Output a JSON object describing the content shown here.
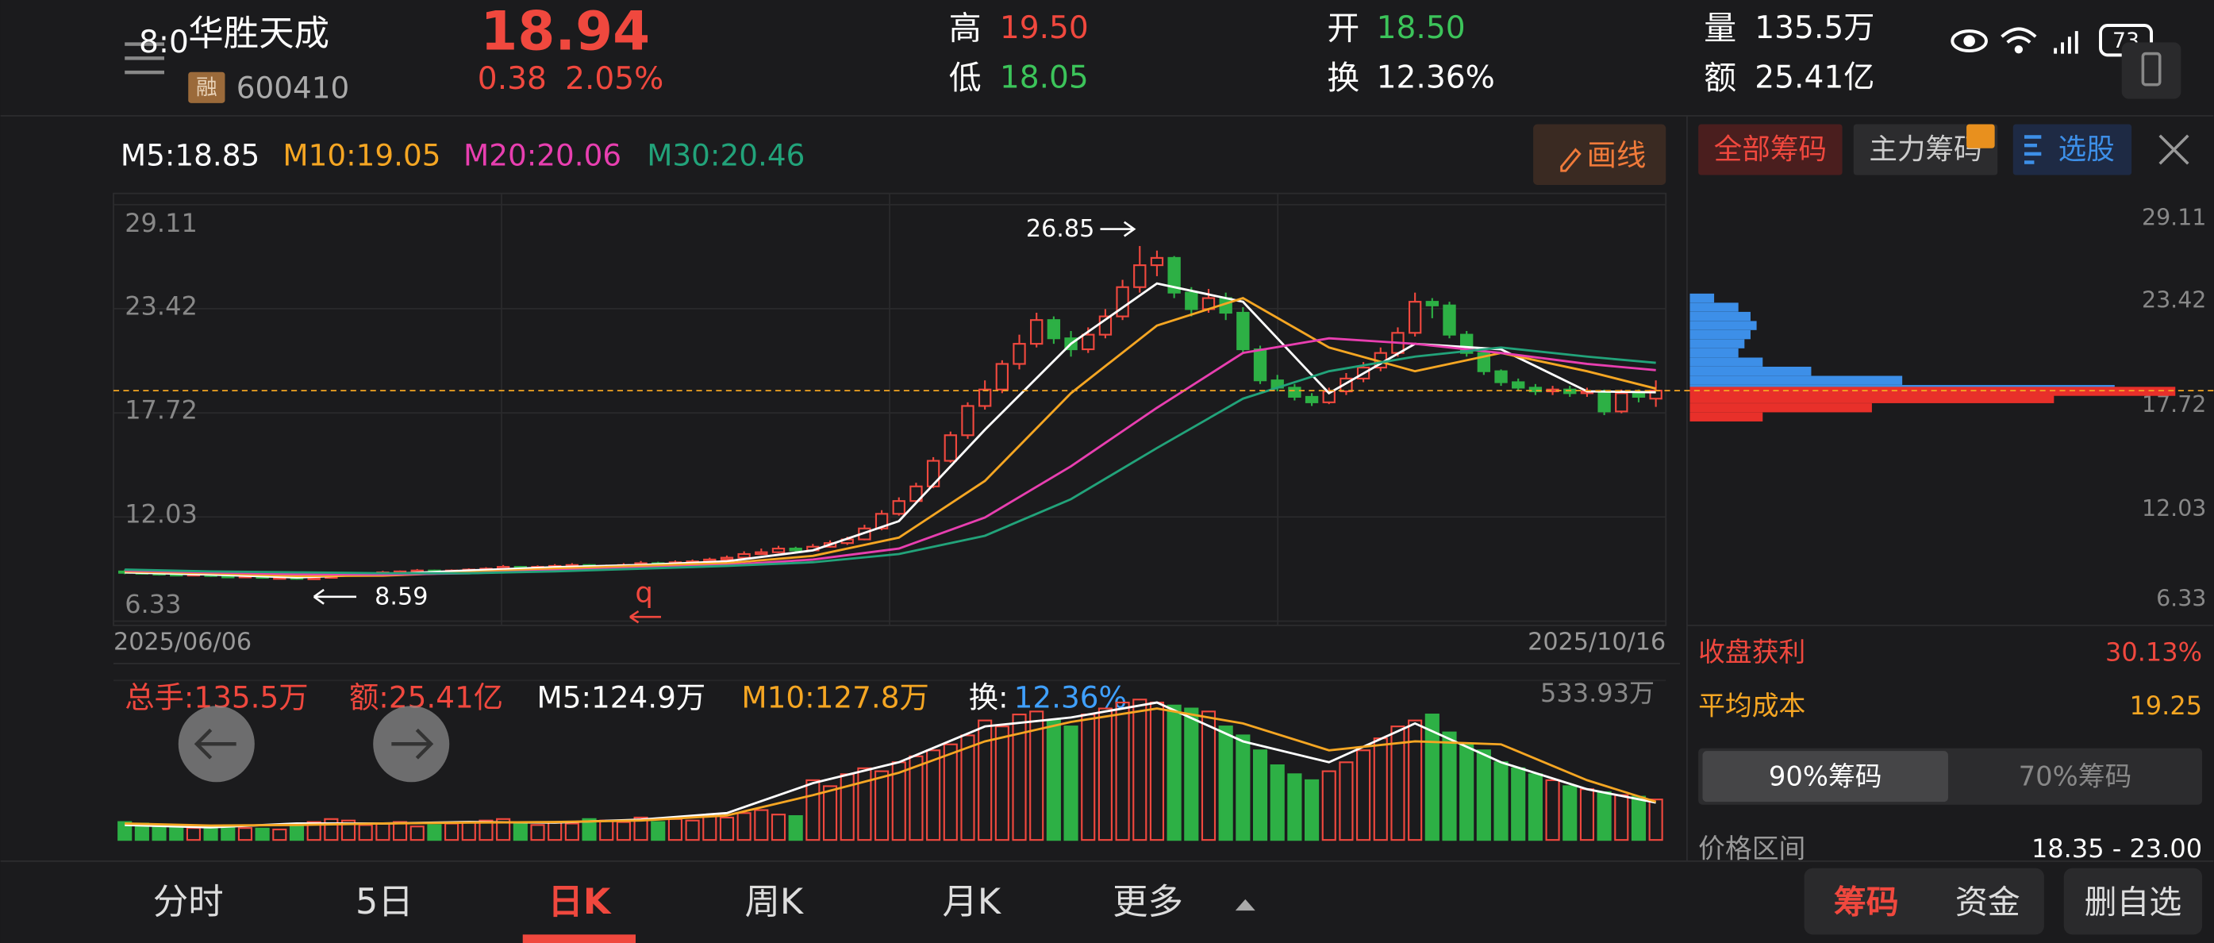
{
  "status": {
    "time": "8:0",
    "battery": "73"
  },
  "header": {
    "name": "华胜天成",
    "tag": "融",
    "code": "600410",
    "price": "18.94",
    "change": "0.38",
    "change_pct": "2.05%",
    "high_label": "高",
    "high": "19.50",
    "low_label": "低",
    "low": "18.05",
    "open_label": "开",
    "open": "18.50",
    "turnover_label": "换",
    "turnover": "12.36%",
    "volume_label": "量",
    "volume": "135.5万",
    "amount_label": "额",
    "amount": "25.41亿"
  },
  "toolbar": {
    "draw": "画线"
  },
  "kline": {
    "type": "candlestick",
    "up_color": "#f0483e",
    "down_color": "#2db045",
    "ylim": [
      6.33,
      29.11
    ],
    "yticks": [
      29.11,
      23.42,
      17.72,
      12.03,
      6.33
    ],
    "dates": [
      "2025/06/06",
      "2025/10/16"
    ],
    "ma_legend": [
      "M5:18.85",
      "M10:19.05",
      "M20:20.06",
      "M30:20.46"
    ],
    "ma": [
      {
        "color": "#ffffff",
        "x": [
          0,
          5,
          10,
          15,
          20,
          25,
          30,
          35,
          40,
          45,
          50,
          55,
          60,
          65,
          70,
          75,
          80,
          85,
          89
        ],
        "values": [
          9.0,
          8.88,
          8.72,
          8.9,
          9.1,
          9.28,
          9.4,
          9.6,
          10.2,
          11.8,
          16.8,
          21.5,
          24.8,
          23.8,
          18.8,
          21.5,
          21.2,
          18.9,
          18.85
        ]
      },
      {
        "color": "#f5a623",
        "x": [
          0,
          5,
          10,
          15,
          20,
          25,
          30,
          35,
          40,
          45,
          50,
          55,
          60,
          65,
          70,
          75,
          80,
          85,
          89
        ],
        "values": [
          9.05,
          8.95,
          8.8,
          8.82,
          9.0,
          9.2,
          9.35,
          9.5,
          9.9,
          10.9,
          14.0,
          18.8,
          22.5,
          24.0,
          21.3,
          20.0,
          21.0,
          20.0,
          19.05
        ]
      },
      {
        "color": "#e83fb0",
        "x": [
          0,
          5,
          10,
          15,
          20,
          25,
          30,
          35,
          40,
          45,
          50,
          55,
          60,
          65,
          70,
          75,
          80,
          85,
          89
        ],
        "values": [
          9.1,
          9.0,
          8.9,
          8.88,
          8.95,
          9.1,
          9.25,
          9.4,
          9.7,
          10.3,
          12.0,
          14.8,
          18.0,
          21.0,
          21.8,
          21.5,
          21.0,
          20.4,
          20.06
        ]
      },
      {
        "color": "#22a37a",
        "x": [
          0,
          5,
          10,
          15,
          20,
          25,
          30,
          35,
          40,
          45,
          50,
          55,
          60,
          65,
          70,
          75,
          80,
          85,
          89
        ],
        "values": [
          9.15,
          9.05,
          9.0,
          8.95,
          8.95,
          9.05,
          9.2,
          9.35,
          9.55,
          10.0,
          11.0,
          13.0,
          15.8,
          18.5,
          20.0,
          20.8,
          21.3,
          20.8,
          20.46
        ]
      }
    ],
    "candles": [
      [
        9.05,
        9.15,
        8.9,
        9.0
      ],
      [
        9.0,
        9.1,
        8.88,
        8.95
      ],
      [
        8.95,
        9.0,
        8.82,
        8.9
      ],
      [
        8.9,
        8.98,
        8.8,
        8.85
      ],
      [
        8.85,
        8.98,
        8.8,
        8.9
      ],
      [
        8.9,
        8.95,
        8.75,
        8.8
      ],
      [
        8.8,
        8.85,
        8.7,
        8.75
      ],
      [
        8.75,
        8.88,
        8.7,
        8.8
      ],
      [
        8.8,
        8.85,
        8.65,
        8.7
      ],
      [
        8.7,
        8.8,
        8.65,
        8.72
      ],
      [
        8.72,
        8.76,
        8.6,
        8.65
      ],
      [
        8.65,
        8.78,
        8.59,
        8.7
      ],
      [
        8.7,
        8.92,
        8.68,
        8.85
      ],
      [
        8.85,
        8.98,
        8.8,
        8.9
      ],
      [
        8.9,
        9.02,
        8.85,
        8.95
      ],
      [
        8.95,
        9.08,
        8.9,
        9.0
      ],
      [
        9.0,
        9.1,
        8.95,
        9.05
      ],
      [
        9.05,
        9.18,
        9.0,
        9.1
      ],
      [
        9.1,
        9.15,
        9.0,
        9.05
      ],
      [
        9.05,
        9.16,
        9.0,
        9.1
      ],
      [
        9.1,
        9.22,
        9.05,
        9.15
      ],
      [
        9.15,
        9.28,
        9.1,
        9.2
      ],
      [
        9.2,
        9.4,
        9.15,
        9.3
      ],
      [
        9.3,
        9.35,
        9.2,
        9.25
      ],
      [
        9.25,
        9.38,
        9.2,
        9.3
      ],
      [
        9.3,
        9.45,
        9.25,
        9.35
      ],
      [
        9.35,
        9.5,
        9.3,
        9.4
      ],
      [
        9.4,
        9.45,
        9.25,
        9.3
      ],
      [
        9.3,
        9.42,
        9.25,
        9.35
      ],
      [
        9.35,
        9.5,
        9.3,
        9.4
      ],
      [
        9.4,
        9.62,
        9.35,
        9.5
      ],
      [
        9.5,
        9.58,
        9.4,
        9.45
      ],
      [
        9.45,
        9.65,
        9.4,
        9.55
      ],
      [
        9.55,
        9.7,
        9.5,
        9.6
      ],
      [
        9.6,
        9.8,
        9.55,
        9.7
      ],
      [
        9.7,
        9.92,
        9.65,
        9.8
      ],
      [
        9.8,
        10.15,
        9.75,
        10.0
      ],
      [
        10.0,
        10.3,
        9.95,
        10.1
      ],
      [
        10.1,
        10.45,
        10.05,
        10.3
      ],
      [
        10.3,
        10.4,
        10.1,
        10.2
      ],
      [
        10.2,
        10.55,
        10.15,
        10.4
      ],
      [
        10.4,
        10.75,
        10.35,
        10.6
      ],
      [
        10.6,
        10.95,
        10.5,
        10.8
      ],
      [
        10.8,
        11.6,
        10.75,
        11.4
      ],
      [
        11.4,
        12.4,
        11.3,
        12.2
      ],
      [
        12.2,
        13.1,
        12.1,
        12.9
      ],
      [
        12.9,
        13.9,
        12.8,
        13.7
      ],
      [
        13.7,
        15.3,
        13.6,
        15.1
      ],
      [
        15.1,
        16.7,
        15.0,
        16.5
      ],
      [
        16.5,
        18.3,
        16.3,
        18.1
      ],
      [
        18.1,
        19.5,
        17.9,
        19.0
      ],
      [
        19.0,
        20.6,
        18.8,
        20.4
      ],
      [
        20.4,
        22.0,
        20.1,
        21.5
      ],
      [
        21.5,
        23.2,
        21.3,
        22.8
      ],
      [
        22.8,
        23.0,
        21.5,
        21.8
      ],
      [
        21.8,
        22.2,
        20.8,
        21.2
      ],
      [
        21.2,
        22.4,
        21.0,
        22.0
      ],
      [
        22.0,
        23.4,
        21.8,
        23.0
      ],
      [
        23.0,
        25.0,
        22.8,
        24.6
      ],
      [
        24.6,
        26.85,
        24.3,
        25.8
      ],
      [
        25.8,
        26.6,
        25.2,
        26.2
      ],
      [
        26.2,
        26.3,
        24.0,
        24.3
      ],
      [
        24.3,
        24.6,
        23.0,
        23.4
      ],
      [
        23.4,
        24.5,
        23.2,
        24.0
      ],
      [
        24.0,
        24.3,
        22.8,
        23.2
      ],
      [
        23.2,
        23.5,
        21.0,
        21.2
      ],
      [
        21.2,
        21.4,
        19.3,
        19.5
      ],
      [
        19.5,
        19.8,
        18.9,
        19.1
      ],
      [
        19.1,
        19.3,
        18.4,
        18.6
      ],
      [
        18.6,
        18.8,
        18.1,
        18.3
      ],
      [
        18.3,
        19.1,
        18.2,
        18.9
      ],
      [
        18.9,
        19.9,
        18.7,
        19.6
      ],
      [
        19.6,
        20.5,
        19.4,
        20.2
      ],
      [
        20.2,
        21.3,
        20.0,
        21.0
      ],
      [
        21.0,
        22.4,
        20.8,
        22.1
      ],
      [
        22.1,
        24.3,
        21.9,
        23.8
      ],
      [
        23.8,
        24.0,
        22.9,
        23.6
      ],
      [
        23.6,
        23.8,
        21.8,
        22.0
      ],
      [
        22.0,
        22.2,
        20.8,
        21.0
      ],
      [
        21.0,
        21.2,
        19.8,
        20.0
      ],
      [
        20.0,
        20.1,
        19.2,
        19.4
      ],
      [
        19.4,
        19.6,
        18.9,
        19.1
      ],
      [
        19.1,
        19.3,
        18.7,
        18.9
      ],
      [
        18.9,
        19.2,
        18.7,
        19.0
      ],
      [
        19.0,
        19.2,
        18.6,
        18.8
      ],
      [
        18.8,
        19.1,
        18.6,
        18.9
      ],
      [
        18.9,
        19.0,
        17.6,
        17.8
      ],
      [
        17.8,
        19.0,
        17.7,
        18.8
      ],
      [
        18.8,
        19.0,
        18.3,
        18.6
      ],
      [
        18.5,
        19.5,
        18.05,
        18.94
      ]
    ],
    "high_note": "26.85",
    "low_note": "8.59",
    "marker": "q",
    "vol_info": [
      "总手:135.5万",
      "额:25.41亿"
    ],
    "vol_turnover_label": "换:",
    "vol_turnover": "12.36%",
    "vol_legend": [
      "M5:124.9万",
      "M10:127.8万"
    ],
    "vol_ylim": [
      0,
      533.93
    ],
    "vol_yticks": [
      {
        "value": 533.93,
        "label": "533.93万"
      }
    ],
    "volume": [
      60,
      55,
      50,
      45,
      40,
      45,
      42,
      40,
      38,
      35,
      55,
      60,
      70,
      65,
      50,
      55,
      60,
      45,
      50,
      55,
      60,
      65,
      70,
      55,
      50,
      60,
      55,
      70,
      65,
      60,
      75,
      60,
      70,
      65,
      80,
      75,
      90,
      100,
      85,
      80,
      200,
      180,
      220,
      240,
      230,
      260,
      280,
      300,
      320,
      350,
      400,
      380,
      420,
      430,
      400,
      380,
      420,
      440,
      460,
      470,
      460,
      450,
      440,
      430,
      380,
      350,
      300,
      250,
      220,
      200,
      230,
      260,
      300,
      340,
      380,
      400,
      420,
      360,
      320,
      300,
      260,
      240,
      220,
      200,
      180,
      170,
      160,
      150,
      145,
      135.5
    ],
    "vol_ma": [
      {
        "color": "#ffffff",
        "x": [
          0,
          5,
          10,
          15,
          20,
          25,
          30,
          35,
          40,
          45,
          50,
          55,
          60,
          65,
          70,
          75,
          80,
          85,
          89
        ],
        "values": [
          50,
          42,
          55,
          55,
          60,
          58,
          68,
          90,
          190,
          260,
          380,
          410,
          460,
          330,
          260,
          390,
          260,
          170,
          124.9
        ]
      },
      {
        "color": "#f5a623",
        "x": [
          0,
          5,
          10,
          15,
          20,
          25,
          30,
          35,
          40,
          45,
          50,
          55,
          60,
          65,
          70,
          75,
          80,
          85,
          89
        ],
        "values": [
          55,
          48,
          50,
          55,
          58,
          60,
          65,
          82,
          150,
          225,
          330,
          395,
          440,
          390,
          300,
          330,
          320,
          200,
          127.8
        ]
      }
    ]
  },
  "chips": {
    "tabs": [
      "全部筹码",
      "主力筹码",
      "选股"
    ],
    "loss_color": "#3d8fe8",
    "profit_color": "#e8302a",
    "prices": [
      24.0,
      23.5,
      23.0,
      22.5,
      22.0,
      21.5,
      21.0,
      20.5,
      20.0,
      19.5,
      19.0,
      18.9,
      18.5,
      18.0,
      17.5
    ],
    "values": [
      4,
      8,
      10,
      11,
      10,
      9,
      8,
      12,
      20,
      35,
      70,
      80,
      60,
      30,
      12
    ],
    "profit_label": "收盘获利",
    "profit": "30.13%",
    "cost_label": "平均成本",
    "cost": "19.25",
    "toggle": [
      "90%筹码",
      "70%筹码"
    ],
    "range_label": "价格区间",
    "range": "18.35 - 23.00"
  },
  "tabs": [
    "分时",
    "5日",
    "日K",
    "周K",
    "月K",
    "更多"
  ],
  "actions": [
    "筹码",
    "资金",
    "删自选"
  ]
}
